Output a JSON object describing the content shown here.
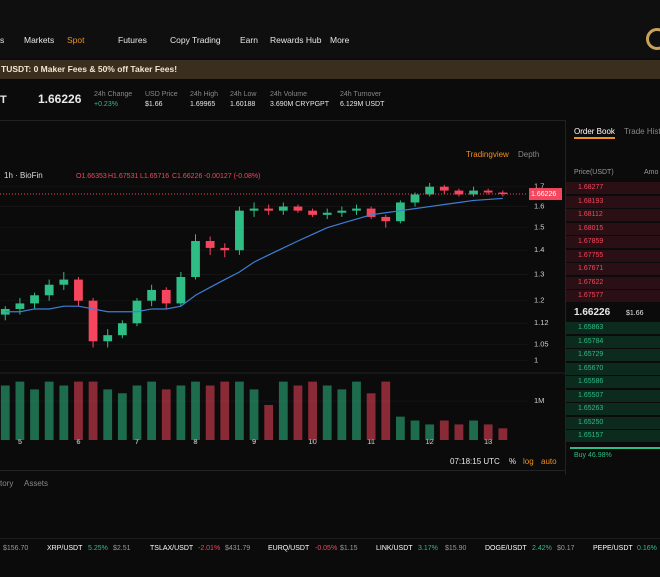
{
  "nav": {
    "items": [
      "s",
      "Markets",
      "Spot",
      "Futures",
      "Copy Trading",
      "Earn",
      "Rewards Hub",
      "More"
    ]
  },
  "banner": {
    "text": "TUSDT: 0 Maker Fees & 50% off Taker Fees!"
  },
  "ticker": {
    "symbol": "T",
    "price": "1.66226",
    "stats": [
      {
        "label": "24h Change",
        "value": "+0.23%"
      },
      {
        "label": "USD Price",
        "value": "$1.66"
      },
      {
        "label": "24h High",
        "value": "1.69965"
      },
      {
        "label": "24h Low",
        "value": "1.60188"
      },
      {
        "label": "24h Volume",
        "value": "3.690M CRYPGPT"
      },
      {
        "label": "24h Turnover",
        "value": "6.129M USDT"
      }
    ]
  },
  "toolbar": {
    "tradingview": "Tradingview",
    "depth": "Depth",
    "time": "07:18:15 UTC",
    "percent": "%",
    "log": "log",
    "auto": "auto"
  },
  "chart_data": {
    "type": "candlestick",
    "symbol_label": "1h · BioFin",
    "ohlc": [
      "O1.66353",
      "H1.67531",
      "L1.65716",
      "C1.66226"
    ],
    "change": "-0.00127 (-0.08%)",
    "last_price": 1.66226,
    "log_scale": true,
    "up_color": "#2ebd85",
    "down_color": "#f6465d",
    "ma_color": "#3d7fd6",
    "x": [
      4.75,
      5,
      5.25,
      5.5,
      5.75,
      6,
      6.25,
      6.5,
      6.75,
      7,
      7.25,
      7.5,
      7.75,
      8,
      8.25,
      8.5,
      8.75,
      9,
      9.25,
      9.5,
      9.75,
      10,
      10.25,
      10.5,
      10.75,
      11,
      11.25,
      11.5,
      11.75,
      12,
      12.25,
      12.5,
      12.75,
      13,
      13.25
    ],
    "open": [
      1.15,
      1.17,
      1.19,
      1.22,
      1.26,
      1.28,
      1.2,
      1.06,
      1.08,
      1.12,
      1.2,
      1.24,
      1.19,
      1.29,
      1.44,
      1.41,
      1.4,
      1.58,
      1.59,
      1.58,
      1.6,
      1.58,
      1.56,
      1.57,
      1.58,
      1.59,
      1.55,
      1.53,
      1.62,
      1.66,
      1.7,
      1.68,
      1.66,
      1.68,
      1.67
    ],
    "high": [
      1.18,
      1.21,
      1.23,
      1.28,
      1.31,
      1.29,
      1.21,
      1.1,
      1.13,
      1.21,
      1.26,
      1.25,
      1.31,
      1.47,
      1.46,
      1.43,
      1.6,
      1.62,
      1.61,
      1.62,
      1.61,
      1.59,
      1.59,
      1.6,
      1.61,
      1.6,
      1.56,
      1.63,
      1.67,
      1.72,
      1.71,
      1.69,
      1.7,
      1.69,
      1.68
    ],
    "low": [
      1.13,
      1.15,
      1.17,
      1.2,
      1.24,
      1.18,
      1.04,
      1.04,
      1.07,
      1.11,
      1.18,
      1.17,
      1.18,
      1.28,
      1.38,
      1.37,
      1.38,
      1.55,
      1.56,
      1.56,
      1.57,
      1.55,
      1.54,
      1.55,
      1.56,
      1.54,
      1.5,
      1.52,
      1.6,
      1.65,
      1.66,
      1.65,
      1.65,
      1.66,
      1.65
    ],
    "close": [
      1.17,
      1.19,
      1.22,
      1.26,
      1.28,
      1.2,
      1.06,
      1.08,
      1.12,
      1.2,
      1.24,
      1.19,
      1.29,
      1.44,
      1.41,
      1.4,
      1.58,
      1.59,
      1.58,
      1.6,
      1.58,
      1.56,
      1.57,
      1.58,
      1.59,
      1.55,
      1.53,
      1.62,
      1.66,
      1.7,
      1.68,
      1.66,
      1.68,
      1.67,
      1.66226
    ],
    "ma": [
      1.16,
      1.16,
      1.17,
      1.17,
      1.18,
      1.18,
      1.17,
      1.16,
      1.16,
      1.16,
      1.17,
      1.17,
      1.18,
      1.22,
      1.25,
      1.28,
      1.31,
      1.35,
      1.38,
      1.41,
      1.44,
      1.47,
      1.5,
      1.52,
      1.54,
      1.56,
      1.57,
      1.58,
      1.59,
      1.6,
      1.61,
      1.62,
      1.63,
      1.635,
      1.64
    ],
    "volume": [
      1400000,
      1500000,
      1300000,
      1500000,
      1400000,
      1500000,
      1500000,
      1300000,
      1200000,
      1400000,
      1500000,
      1300000,
      1400000,
      1500000,
      1400000,
      1500000,
      1500000,
      1300000,
      900000,
      1500000,
      1400000,
      1500000,
      1400000,
      1300000,
      1500000,
      1200000,
      1500000,
      600000,
      500000,
      400000,
      500000,
      400000,
      500000,
      400000,
      300000
    ],
    "xlim": [
      4.66,
      13.68
    ],
    "xticks": [
      5,
      6,
      7,
      8,
      9,
      10,
      11,
      12,
      13
    ],
    "ylim": [
      0.965,
      1.8
    ],
    "yticks": [
      1.7,
      1.6,
      1.5,
      1.4,
      1.3,
      1.2,
      1.12,
      1.05,
      1
    ],
    "volume_ylim": [
      0,
      1670000
    ],
    "volume_ticks": [
      {
        "value": 1000000,
        "label": "1M"
      }
    ]
  },
  "order_book": {
    "tabs": [
      "Order Book",
      "Trade Hist"
    ],
    "header": [
      "Price(USDT)",
      "Amo"
    ],
    "asks": [
      "1.68277",
      "1.68193",
      "1.68112",
      "1.68015",
      "1.67859",
      "1.67755",
      "1.67671",
      "1.67622",
      "1.67577"
    ],
    "mid_price": "1.66226",
    "mid_usd": "$1.66",
    "bids": [
      "1.65863",
      "1.65784",
      "1.65729",
      "1.65670",
      "1.65586",
      "1.65507",
      "1.65263",
      "1.65250",
      "1.65157"
    ],
    "buy_ratio": "Buy 46.98%"
  },
  "bottom_tabs": [
    "tory",
    "Assets"
  ],
  "market_strip": [
    {
      "price": "$156.70"
    },
    {
      "pair": "XRP/USDT",
      "change": "5.25%",
      "price": "$2.51"
    },
    {
      "pair": "TSLAX/USDT",
      "change": "-2.01%",
      "price": "$431.79"
    },
    {
      "pair": "EURQ/USDT",
      "change": "-0.05%",
      "price": "$1.15"
    },
    {
      "pair": "LINK/USDT",
      "change": "3.17%",
      "price": "$15.90"
    },
    {
      "pair": "DOGE/USDT",
      "change": "2.42%",
      "price": "$0.17"
    },
    {
      "pair": "PEPE/USDT",
      "change": "0.16%"
    }
  ]
}
